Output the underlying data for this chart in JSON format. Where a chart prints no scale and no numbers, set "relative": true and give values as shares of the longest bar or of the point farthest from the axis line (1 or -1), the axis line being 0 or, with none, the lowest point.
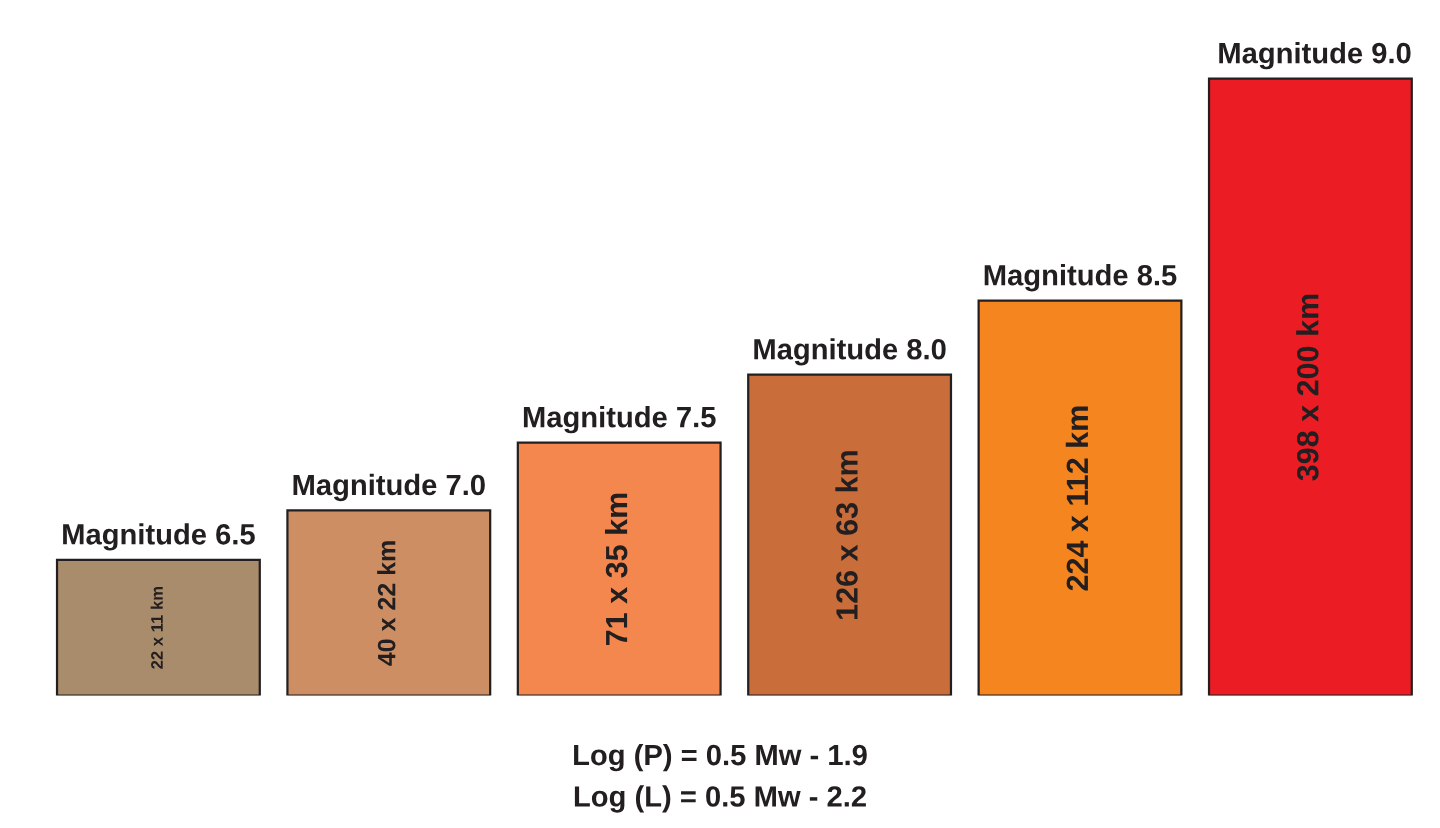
{
  "chart_data": {
    "type": "bar",
    "relative": true,
    "categories": [
      "Magnitude 6.5",
      "Magnitude 7.0",
      "Magnitude 7.5",
      "Magnitude 8.0",
      "Magnitude 8.5",
      "Magnitude 9.0"
    ],
    "values": [
      0.22,
      0.3,
      0.41,
      0.52,
      0.64,
      1
    ],
    "colors": [
      "#a98c6b",
      "#cc8e62",
      "#f4874e",
      "#c96d3a",
      "#f5861f",
      "#ec1c24"
    ],
    "annotations": [
      "22 x 11 km",
      "40 x 22 km",
      "71 x 35 km",
      "126 x 63 km",
      "224 x 112 km",
      "398 x 200 km",
      "Log (P) = 0.5 Mw - 1.9",
      "Log (L) = 0.5 Mw - 2.2"
    ]
  }
}
